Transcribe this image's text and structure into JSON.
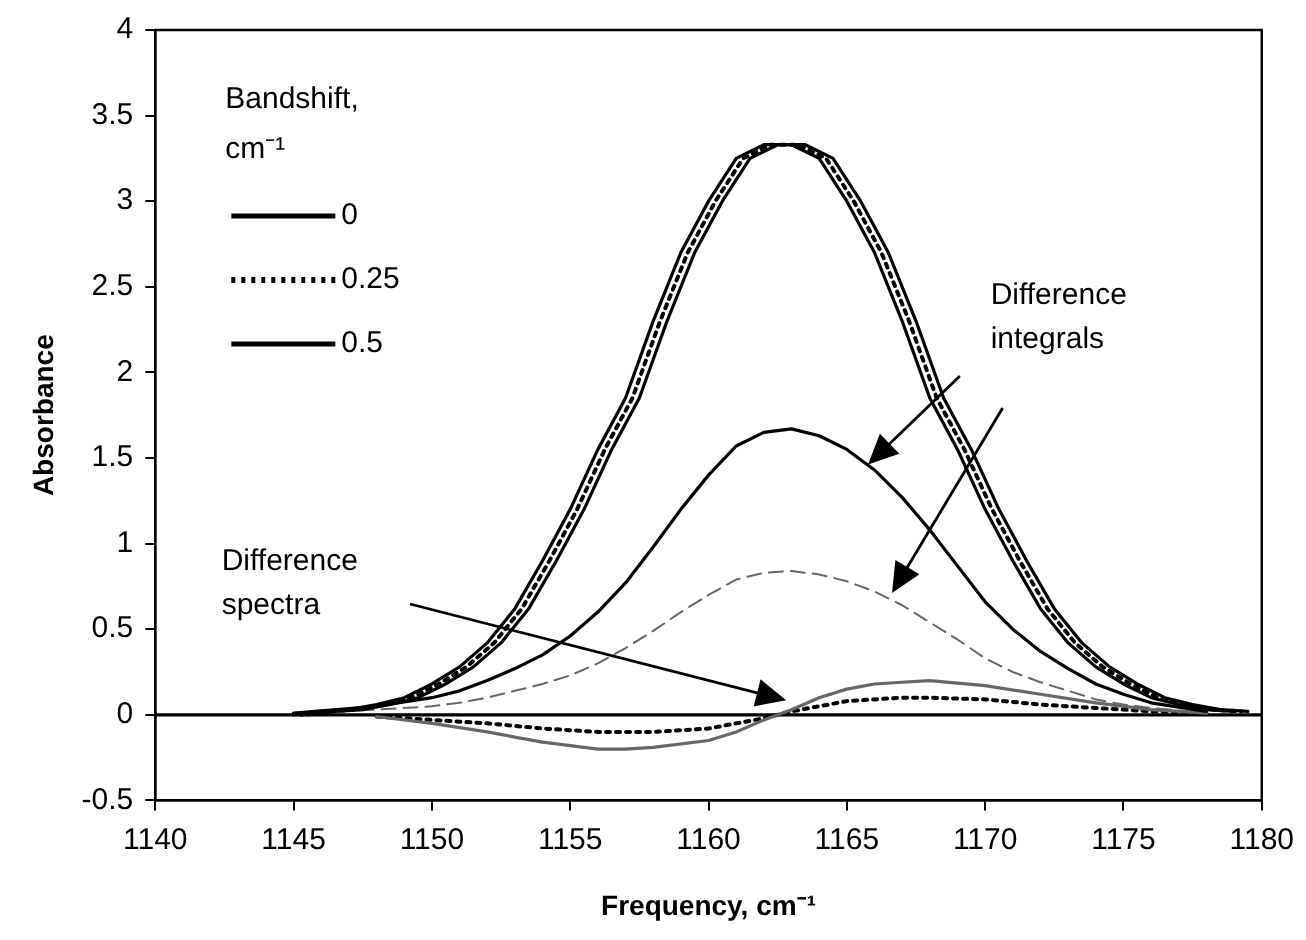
{
  "chart_data": {
    "type": "line",
    "xlabel": "Frequency, cm⁻¹",
    "ylabel": "Absorbance",
    "legend_title": "Bandshift, cm⁻¹",
    "xlim": [
      1140,
      1180
    ],
    "xticks": [
      1140,
      1145,
      1150,
      1155,
      1160,
      1165,
      1170,
      1175,
      1180
    ],
    "ylim": [
      -0.5,
      4
    ],
    "yticks": [
      -0.5,
      0,
      0.5,
      1,
      1.5,
      2,
      2.5,
      3,
      3.5,
      4
    ],
    "grid": false,
    "legend": "top left",
    "marker": "none",
    "annotations": [
      "Difference integrals",
      "Difference spectra"
    ],
    "series": [
      {
        "name": "0",
        "color": "#000000",
        "line_style": "solid",
        "x": [
          1145,
          1146,
          1147,
          1148,
          1149,
          1150,
          1151,
          1152,
          1153,
          1154,
          1155,
          1156,
          1157,
          1158,
          1159,
          1160,
          1161,
          1162,
          1163,
          1164,
          1165,
          1166,
          1167,
          1168,
          1169,
          1170,
          1171,
          1172,
          1173,
          1174,
          1175,
          1176,
          1177,
          1178,
          1179
        ],
        "values": [
          0,
          0.02,
          0.03,
          0.06,
          0.1,
          0.18,
          0.28,
          0.42,
          0.62,
          0.9,
          1.2,
          1.55,
          1.85,
          2.3,
          2.7,
          3.0,
          3.25,
          3.33,
          3.33,
          3.25,
          3.0,
          2.7,
          2.3,
          1.85,
          1.55,
          1.2,
          0.9,
          0.62,
          0.42,
          0.28,
          0.18,
          0.1,
          0.06,
          0.03,
          0.02
        ]
      },
      {
        "name": "0.25",
        "color": "#000000",
        "line_style": "dotted",
        "x": [
          1145.25,
          1146.25,
          1147.25,
          1148.25,
          1149.25,
          1150.25,
          1151.25,
          1152.25,
          1153.25,
          1154.25,
          1155.25,
          1156.25,
          1157.25,
          1158.25,
          1159.25,
          1160.25,
          1161.25,
          1162.25,
          1163.25,
          1164.25,
          1165.25,
          1166.25,
          1167.25,
          1168.25,
          1169.25,
          1170.25,
          1171.25,
          1172.25,
          1173.25,
          1174.25,
          1175.25,
          1176.25,
          1177.25,
          1178.25,
          1179.25
        ],
        "values": [
          0,
          0.02,
          0.03,
          0.06,
          0.1,
          0.18,
          0.28,
          0.42,
          0.62,
          0.9,
          1.2,
          1.55,
          1.85,
          2.3,
          2.7,
          3.0,
          3.25,
          3.33,
          3.33,
          3.25,
          3.0,
          2.7,
          2.3,
          1.85,
          1.55,
          1.2,
          0.9,
          0.62,
          0.42,
          0.28,
          0.18,
          0.1,
          0.06,
          0.03,
          0.02
        ]
      },
      {
        "name": "0.5",
        "color": "#000000",
        "line_style": "solid",
        "x": [
          1145.5,
          1146.5,
          1147.5,
          1148.5,
          1149.5,
          1150.5,
          1151.5,
          1152.5,
          1153.5,
          1154.5,
          1155.5,
          1156.5,
          1157.5,
          1158.5,
          1159.5,
          1160.5,
          1161.5,
          1162.5,
          1163.5,
          1164.5,
          1165.5,
          1166.5,
          1167.5,
          1168.5,
          1169.5,
          1170.5,
          1171.5,
          1172.5,
          1173.5,
          1174.5,
          1175.5,
          1176.5,
          1177.5,
          1178.5,
          1179.5
        ],
        "values": [
          0,
          0.02,
          0.03,
          0.06,
          0.1,
          0.18,
          0.28,
          0.42,
          0.62,
          0.9,
          1.2,
          1.55,
          1.85,
          2.3,
          2.7,
          3.0,
          3.25,
          3.33,
          3.33,
          3.25,
          3.0,
          2.7,
          2.3,
          1.85,
          1.55,
          1.2,
          0.9,
          0.62,
          0.42,
          0.28,
          0.18,
          0.1,
          0.06,
          0.03,
          0.02
        ]
      },
      {
        "color": "#000000",
        "line_style": "solid",
        "x": [
          1145,
          1148,
          1150,
          1151,
          1152,
          1153,
          1154,
          1155,
          1156,
          1157,
          1158,
          1159,
          1160,
          1161,
          1162,
          1163,
          1164,
          1165,
          1166,
          1167,
          1168,
          1169,
          1170,
          1171,
          1172,
          1173,
          1174,
          1175,
          1176,
          1178
        ],
        "values": [
          0.01,
          0.05,
          0.1,
          0.14,
          0.2,
          0.27,
          0.35,
          0.46,
          0.6,
          0.77,
          0.98,
          1.2,
          1.4,
          1.57,
          1.65,
          1.67,
          1.63,
          1.55,
          1.43,
          1.27,
          1.08,
          0.87,
          0.66,
          0.5,
          0.37,
          0.27,
          0.18,
          0.12,
          0.07,
          0.02
        ]
      },
      {
        "color": "#666666",
        "line_style": "dashed",
        "x": [
          1145,
          1148,
          1150,
          1151,
          1152,
          1153,
          1154,
          1155,
          1156,
          1157,
          1158,
          1159,
          1160,
          1161,
          1162,
          1163,
          1164,
          1165,
          1166,
          1167,
          1168,
          1169,
          1170,
          1171,
          1172,
          1173,
          1174,
          1175,
          1176,
          1178
        ],
        "values": [
          0.01,
          0.03,
          0.05,
          0.07,
          0.1,
          0.14,
          0.18,
          0.23,
          0.3,
          0.39,
          0.49,
          0.6,
          0.7,
          0.79,
          0.83,
          0.84,
          0.82,
          0.78,
          0.72,
          0.64,
          0.54,
          0.44,
          0.33,
          0.25,
          0.19,
          0.14,
          0.09,
          0.06,
          0.04,
          0.01
        ]
      },
      {
        "color": "#666666",
        "line_style": "solid",
        "x": [
          1148,
          1150,
          1152,
          1154,
          1156,
          1157,
          1158,
          1160,
          1161,
          1162,
          1163,
          1164,
          1165,
          1166,
          1167,
          1168,
          1170,
          1172,
          1174,
          1176,
          1178
        ],
        "values": [
          -0.01,
          -0.05,
          -0.1,
          -0.16,
          -0.2,
          -0.2,
          -0.19,
          -0.15,
          -0.1,
          -0.03,
          0.03,
          0.1,
          0.15,
          0.18,
          0.19,
          0.2,
          0.17,
          0.12,
          0.07,
          0.03,
          0.01
        ]
      },
      {
        "color": "#000000",
        "line_style": "dotted",
        "x": [
          1148,
          1150,
          1152,
          1154,
          1156,
          1157,
          1158,
          1160,
          1161,
          1162,
          1163,
          1164,
          1165,
          1166,
          1167,
          1168,
          1170,
          1172,
          1174,
          1176,
          1178
        ],
        "values": [
          -0.01,
          -0.03,
          -0.05,
          -0.08,
          -0.1,
          -0.1,
          -0.1,
          -0.08,
          -0.05,
          -0.02,
          0.02,
          0.05,
          0.08,
          0.09,
          0.1,
          0.1,
          0.09,
          0.06,
          0.04,
          0.02,
          0.01
        ]
      },
      {
        "color": "#000000",
        "line_style": "solid",
        "x": [
          1140,
          1180
        ],
        "values": [
          0,
          0
        ]
      }
    ]
  }
}
